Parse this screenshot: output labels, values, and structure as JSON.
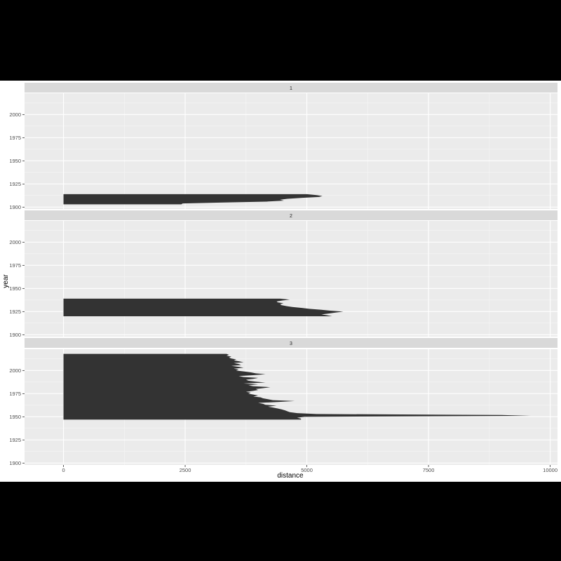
{
  "chart_data": {
    "type": "area",
    "facet_by": "panel",
    "xlabel": "distance",
    "ylabel": "year",
    "xlim": [
      -800,
      10150
    ],
    "ylim": [
      1898,
      2023
    ],
    "x_ticks": [
      0,
      2500,
      5000,
      7500,
      10000
    ],
    "x_tick_labels": [
      "0",
      "2500",
      "5000",
      "7500",
      "10000"
    ],
    "y_ticks": [
      1900,
      1925,
      1950,
      1975,
      2000
    ],
    "y_tick_labels": [
      "1900",
      "1925",
      "1950",
      "1975",
      "2000"
    ],
    "grid": true,
    "panel_background": "#ebebeb",
    "strip_background": "#d9d9d9",
    "fill_color": "#333333",
    "panels": [
      {
        "label": "1",
        "values": [
          [
            1903,
            2420
          ],
          [
            1904,
            2450
          ],
          [
            1905,
            3300
          ],
          [
            1906,
            4180
          ],
          [
            1907,
            4530
          ],
          [
            1908,
            4450
          ],
          [
            1909,
            4600
          ],
          [
            1910,
            4900
          ],
          [
            1911,
            5250
          ],
          [
            1912,
            5320
          ],
          [
            1913,
            5200
          ],
          [
            1914,
            5000
          ]
        ]
      },
      {
        "label": "2",
        "values": [
          [
            1920,
            5520
          ],
          [
            1921,
            5420
          ],
          [
            1922,
            5300
          ],
          [
            1923,
            5460
          ],
          [
            1924,
            5600
          ],
          [
            1925,
            5750
          ],
          [
            1926,
            5480
          ],
          [
            1927,
            5300
          ],
          [
            1928,
            5050
          ],
          [
            1929,
            4900
          ],
          [
            1930,
            4700
          ],
          [
            1931,
            4580
          ],
          [
            1932,
            4480
          ],
          [
            1933,
            4450
          ],
          [
            1934,
            4520
          ],
          [
            1935,
            4400
          ],
          [
            1936,
            4380
          ],
          [
            1937,
            4500
          ],
          [
            1938,
            4650
          ],
          [
            1939,
            4450
          ]
        ]
      },
      {
        "label": "3",
        "values": [
          [
            1947,
            4880
          ],
          [
            1948,
            4880
          ],
          [
            1949,
            4800
          ],
          [
            1950,
            4950
          ],
          [
            1951,
            9600
          ],
          [
            1952,
            9000
          ],
          [
            1953,
            5200
          ],
          [
            1954,
            4800
          ],
          [
            1955,
            4650
          ],
          [
            1956,
            4600
          ],
          [
            1957,
            4550
          ],
          [
            1958,
            4480
          ],
          [
            1959,
            4400
          ],
          [
            1960,
            4300
          ],
          [
            1961,
            4200
          ],
          [
            1962,
            4380
          ],
          [
            1963,
            4150
          ],
          [
            1964,
            4100
          ],
          [
            1965,
            4000
          ],
          [
            1966,
            4400
          ],
          [
            1967,
            4750
          ],
          [
            1968,
            4300
          ],
          [
            1969,
            4200
          ],
          [
            1970,
            4100
          ],
          [
            1971,
            4050
          ],
          [
            1972,
            3900
          ],
          [
            1973,
            4000
          ],
          [
            1974,
            3900
          ],
          [
            1975,
            3800
          ],
          [
            1976,
            3850
          ],
          [
            1977,
            3750
          ],
          [
            1978,
            3900
          ],
          [
            1979,
            4000
          ],
          [
            1980,
            3950
          ],
          [
            1981,
            4100
          ],
          [
            1982,
            4250
          ],
          [
            1983,
            3900
          ],
          [
            1984,
            3800
          ],
          [
            1985,
            4000
          ],
          [
            1986,
            3700
          ],
          [
            1987,
            4150
          ],
          [
            1988,
            3950
          ],
          [
            1989,
            3800
          ],
          [
            1990,
            3750
          ],
          [
            1991,
            3900
          ],
          [
            1992,
            4000
          ],
          [
            1993,
            3700
          ],
          [
            1994,
            3600
          ],
          [
            1995,
            3900
          ],
          [
            1996,
            4150
          ],
          [
            1997,
            3950
          ],
          [
            1998,
            3850
          ],
          [
            1999,
            3700
          ],
          [
            2000,
            3550
          ],
          [
            2001,
            3600
          ],
          [
            2002,
            3500
          ],
          [
            2003,
            3700
          ],
          [
            2004,
            3600
          ],
          [
            2005,
            3450
          ],
          [
            2006,
            3650
          ],
          [
            2007,
            3600
          ],
          [
            2008,
            3500
          ],
          [
            2009,
            3700
          ],
          [
            2010,
            3600
          ],
          [
            2011,
            3500
          ],
          [
            2012,
            3550
          ],
          [
            2013,
            3450
          ],
          [
            2014,
            3400
          ],
          [
            2015,
            3450
          ],
          [
            2016,
            3350
          ],
          [
            2017,
            3400
          ],
          [
            2018,
            3350
          ]
        ]
      }
    ]
  }
}
